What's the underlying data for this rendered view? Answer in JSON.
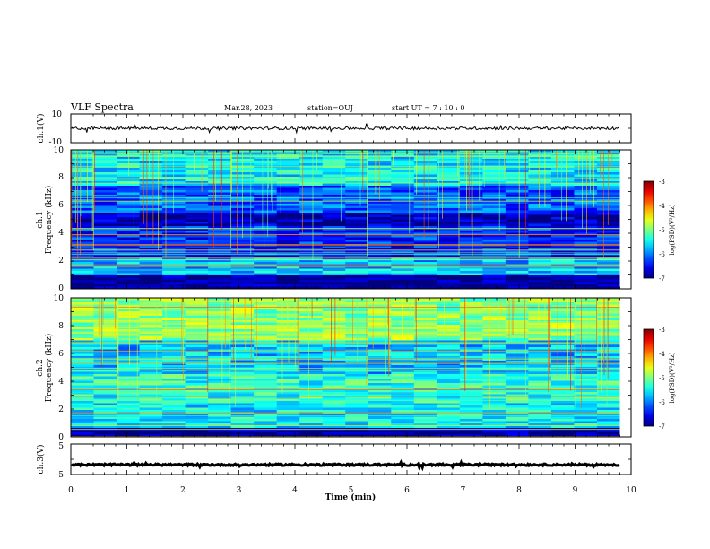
{
  "header": {
    "title": "VLF Spectra",
    "date": "Mar.28, 2023",
    "station": "station=OUJ",
    "start": "start  UT =   7 : 10 : 0"
  },
  "chart_data": [
    {
      "type": "line",
      "panel": "ch1-waveform",
      "ylabel": "ch.1(V)",
      "ylim": [
        -10,
        10
      ],
      "yticks": [
        "10",
        "-10"
      ],
      "xlim": [
        0,
        10
      ],
      "series": [
        {
          "baseline": 0,
          "amplitude_approx": 1
        }
      ]
    },
    {
      "type": "heatmap",
      "panel": "ch1-spectrogram",
      "ylabel_line1": "ch.1",
      "ylabel_line2": "Frequency (kHz)",
      "ylim": [
        0,
        10
      ],
      "yticks": [
        "0",
        "2",
        "4",
        "6",
        "8",
        "10"
      ],
      "xlim": [
        0,
        10
      ],
      "data_end_min": 9.8,
      "colorbar": {
        "label": "log(PSD)(V²/Hz)",
        "range": [
          -7,
          -3
        ],
        "ticks": [
          "-3",
          "-4",
          "-5",
          "-6",
          "-7"
        ]
      },
      "bands_khz": [
        {
          "range": [
            0,
            1.0
          ],
          "level": -7.0
        },
        {
          "range": [
            1.0,
            2.2
          ],
          "level": -5.8
        },
        {
          "range": [
            2.2,
            4.5
          ],
          "level": -6.4
        },
        {
          "range": [
            4.5,
            5.5
          ],
          "level": -6.8
        },
        {
          "range": [
            5.5,
            7.5
          ],
          "level": -6.2
        },
        {
          "range": [
            7.5,
            10.0
          ],
          "level": -5.6
        }
      ]
    },
    {
      "type": "heatmap",
      "panel": "ch2-spectrogram",
      "ylabel_line1": "ch.2",
      "ylabel_line2": "Frequency (kHz)",
      "ylim": [
        0,
        10
      ],
      "yticks": [
        "0",
        "2",
        "4",
        "6",
        "8",
        "10"
      ],
      "xlim": [
        0,
        10
      ],
      "data_end_min": 9.8,
      "colorbar": {
        "label": "log(PSD)(V²/Hz)",
        "range": [
          -7,
          -3
        ],
        "ticks": [
          "-3",
          "-4",
          "-5",
          "-6",
          "-7"
        ]
      },
      "bands_khz": [
        {
          "range": [
            0,
            0.6
          ],
          "level": -7.0
        },
        {
          "range": [
            0.6,
            2.5
          ],
          "level": -5.6
        },
        {
          "range": [
            2.5,
            4.5
          ],
          "level": -5.4
        },
        {
          "range": [
            4.5,
            7.0
          ],
          "level": -5.8
        },
        {
          "range": [
            7.0,
            10.0
          ],
          "level": -5.0
        }
      ]
    },
    {
      "type": "line",
      "panel": "ch3-waveform",
      "ylabel": "ch.3(V)",
      "ylim": [
        -5,
        5
      ],
      "yticks": [
        "5",
        "-5"
      ],
      "xlim": [
        0,
        10
      ],
      "xlabel": "Time (min)",
      "xticks": [
        "0",
        "1",
        "2",
        "3",
        "4",
        "5",
        "6",
        "7",
        "8",
        "9",
        "10"
      ],
      "series": [
        {
          "baseline": -1.8,
          "amplitude_approx": 0.3
        }
      ]
    }
  ]
}
